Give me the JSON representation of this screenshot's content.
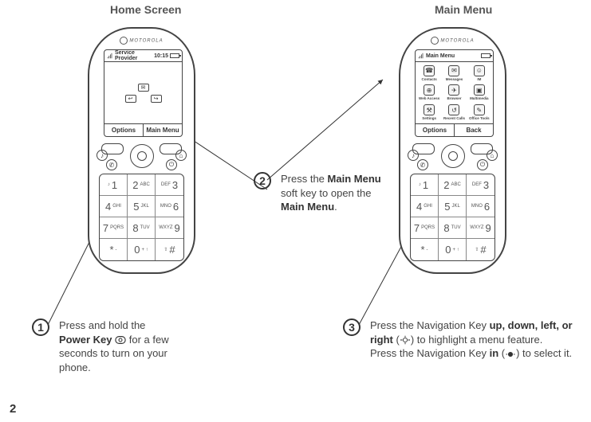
{
  "headings": {
    "home": "Home Screen",
    "menu": "Main Menu"
  },
  "brand": "MOTOROLA",
  "phoneHome": {
    "statusTitle": "Service Provider",
    "clock": "10:15",
    "softLeft": "Options",
    "softRight": "Main Menu"
  },
  "phoneMenu": {
    "statusTitle": "Main Menu",
    "softLeft": "Options",
    "softRight": "Back",
    "items": [
      {
        "label": "Contacts",
        "icon": "☎"
      },
      {
        "label": "Messages",
        "icon": "✉"
      },
      {
        "label": "IM",
        "icon": "☺"
      },
      {
        "label": "Web Access",
        "icon": "⊕"
      },
      {
        "label": "Browser",
        "icon": "✈"
      },
      {
        "label": "Multimedia",
        "icon": "▣"
      },
      {
        "label": "Settings",
        "icon": "⚒"
      },
      {
        "label": "Recent Calls",
        "icon": "↺"
      },
      {
        "label": "Office Tools",
        "icon": "✎"
      }
    ]
  },
  "keypad": [
    {
      "num": "1",
      "let": "",
      "pre": "♪"
    },
    {
      "num": "2",
      "let": "ABC"
    },
    {
      "num": "3",
      "let": "DEF",
      "right": true
    },
    {
      "num": "4",
      "let": "GHI"
    },
    {
      "num": "5",
      "let": "JKL"
    },
    {
      "num": "6",
      "let": "MNO",
      "right": true
    },
    {
      "num": "7",
      "let": "PQRS"
    },
    {
      "num": "8",
      "let": "TUV"
    },
    {
      "num": "9",
      "let": "WXYZ",
      "right": true
    },
    {
      "num": "*",
      "let": "-"
    },
    {
      "num": "0",
      "let": "+ ↑"
    },
    {
      "num": "#",
      "let": "⇧",
      "right": true
    }
  ],
  "steps": {
    "s1a": "Press and hold the",
    "s1b": "Power Key",
    "s1c": " for a few seconds to turn on your phone.",
    "s2a": "Press the ",
    "s2b": "Main Menu",
    "s2c": " soft key to open the ",
    "s2d": "Main Menu",
    "s2e": ".",
    "s3a": "Press the Navigation Key ",
    "s3b": "up, down, left, or right",
    "s3c": " (",
    "s3d": ") to highlight a menu feature.",
    "s3e": "Press the Navigation Key ",
    "s3f": "in",
    "s3g": " (",
    "s3h": ") to select it."
  },
  "stepNumbers": {
    "n1": "1",
    "n2": "2",
    "n3": "3"
  },
  "pageNumber": "2"
}
